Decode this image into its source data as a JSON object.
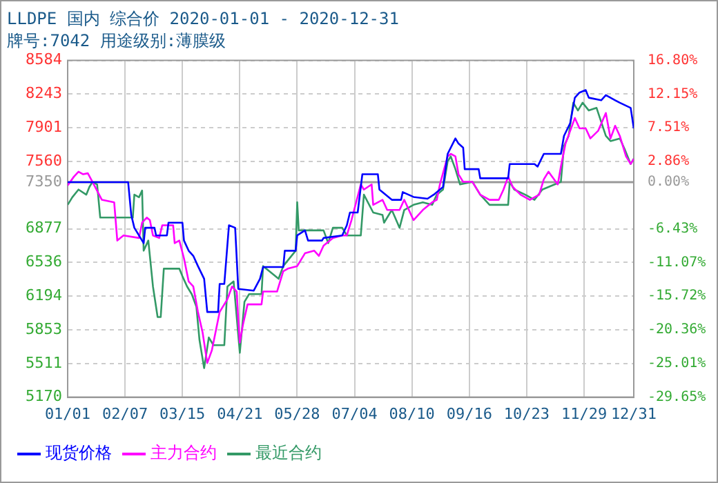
{
  "chart_data": {
    "type": "line",
    "title": "LLDPE 国内 综合价 2020-01-01 - 2020-12-31",
    "subtitle": "牌号:7042 用途级别:薄膜级",
    "xlim": [
      "2020-01-01",
      "2020-12-31"
    ],
    "xticks": [
      {
        "value": "2020-01-01",
        "label": "01/01"
      },
      {
        "value": "2020-02-07",
        "label": "02/07"
      },
      {
        "value": "2020-03-15",
        "label": "03/15"
      },
      {
        "value": "2020-04-21",
        "label": "04/21"
      },
      {
        "value": "2020-05-28",
        "label": "05/28"
      },
      {
        "value": "2020-07-04",
        "label": "07/04"
      },
      {
        "value": "2020-08-10",
        "label": "08/10"
      },
      {
        "value": "2020-09-16",
        "label": "09/16"
      },
      {
        "value": "2020-10-23",
        "label": "10/23"
      },
      {
        "value": "2020-11-29",
        "label": "11/29"
      },
      {
        "value": "2020-12-31",
        "label": "12/31"
      }
    ],
    "ylim": [
      5170,
      8584
    ],
    "yticks": [
      8584,
      8243,
      7901,
      7560,
      7350,
      6877,
      6536,
      6194,
      5853,
      5511,
      5170
    ],
    "y2lim": [
      -29.65,
      16.8
    ],
    "y2ticks": [
      {
        "value": 16.8,
        "label": "16.80%"
      },
      {
        "value": 12.15,
        "label": "12.15%"
      },
      {
        "value": 7.51,
        "label": "7.51%"
      },
      {
        "value": 2.86,
        "label": "2.86%"
      },
      {
        "value": 0,
        "label": "0.00%"
      },
      {
        "value": -6.43,
        "label": "-6.43%"
      },
      {
        "value": -11.07,
        "label": "-11.07%"
      },
      {
        "value": -15.72,
        "label": "-15.72%"
      },
      {
        "value": -20.36,
        "label": "-20.36%"
      },
      {
        "value": -25.01,
        "label": "-25.01%"
      },
      {
        "value": -29.65,
        "label": "-29.65%"
      }
    ],
    "ref_lines": [
      {
        "axis": "y",
        "value": 7350,
        "color": "#999999"
      }
    ],
    "grid": true,
    "legend": "bottom",
    "marker": "none",
    "line_style": "solid",
    "series": [
      {
        "name": "现货价格",
        "color": "#0000ff",
        "x": [
          "2020-01-01",
          "2020-02-09",
          "2020-02-11",
          "2020-02-13",
          "2020-02-19",
          "2020-02-20",
          "2020-02-26",
          "2020-02-27",
          "2020-03-05",
          "2020-03-06",
          "2020-03-15",
          "2020-03-16",
          "2020-03-19",
          "2020-03-22",
          "2020-03-25",
          "2020-03-29",
          "2020-03-31",
          "2020-04-07",
          "2020-04-08",
          "2020-04-11",
          "2020-04-14",
          "2020-04-18",
          "2020-04-20",
          "2020-04-30",
          "2020-05-04",
          "2020-05-06",
          "2020-05-19",
          "2020-05-20",
          "2020-05-27",
          "2020-05-28",
          "2020-06-02",
          "2020-06-04",
          "2020-06-13",
          "2020-06-14",
          "2020-06-26",
          "2020-06-29",
          "2020-07-01",
          "2020-07-06",
          "2020-07-09",
          "2020-07-19",
          "2020-07-20",
          "2020-07-28",
          "2020-08-03",
          "2020-08-04",
          "2020-08-11",
          "2020-08-20",
          "2020-08-24",
          "2020-08-30",
          "2020-09-02",
          "2020-09-07",
          "2020-09-09",
          "2020-09-12",
          "2020-09-13",
          "2020-09-22",
          "2020-09-23",
          "2020-10-11",
          "2020-10-12",
          "2020-10-28",
          "2020-10-30",
          "2020-11-03",
          "2020-11-14",
          "2020-11-16",
          "2020-11-20",
          "2020-11-23",
          "2020-11-26",
          "2020-11-30",
          "2020-12-02",
          "2020-12-10",
          "2020-12-13",
          "2020-12-19",
          "2020-12-22",
          "2020-12-29",
          "2020-12-31"
        ],
        "values": [
          7350,
          7350,
          7017,
          6887,
          6732,
          6887,
          6887,
          6810,
          6810,
          6939,
          6939,
          6758,
          6655,
          6603,
          6499,
          6370,
          6034,
          6034,
          6318,
          6318,
          6913,
          6887,
          6267,
          6250,
          6370,
          6489,
          6489,
          6655,
          6655,
          6810,
          6861,
          6758,
          6758,
          6784,
          6810,
          6913,
          7042,
          7042,
          7430,
          7430,
          7275,
          7171,
          7171,
          7249,
          7200,
          7182,
          7223,
          7301,
          7637,
          7793,
          7741,
          7700,
          7482,
          7482,
          7389,
          7389,
          7534,
          7534,
          7508,
          7637,
          7637,
          7819,
          7948,
          8206,
          8258,
          8284,
          8206,
          8180,
          8232,
          8180,
          8155,
          8103,
          7896
        ]
      },
      {
        "name": "主力合约",
        "color": "#ff00ff",
        "x": [
          "2020-01-01",
          "2020-01-05",
          "2020-01-08",
          "2020-01-11",
          "2020-01-14",
          "2020-01-17",
          "2020-01-23",
          "2020-01-31",
          "2020-02-02",
          "2020-02-06",
          "2020-02-16",
          "2020-02-18",
          "2020-02-21",
          "2020-02-23",
          "2020-02-25",
          "2020-02-29",
          "2020-03-02",
          "2020-03-09",
          "2020-03-10",
          "2020-03-13",
          "2020-03-16",
          "2020-03-19",
          "2020-03-22",
          "2020-03-25",
          "2020-03-28",
          "2020-03-31",
          "2020-04-03",
          "2020-04-06",
          "2020-04-08",
          "2020-04-13",
          "2020-04-16",
          "2020-04-19",
          "2020-04-20",
          "2020-04-21",
          "2020-04-23",
          "2020-04-26",
          "2020-05-05",
          "2020-05-06",
          "2020-05-15",
          "2020-05-19",
          "2020-05-22",
          "2020-05-28",
          "2020-06-02",
          "2020-06-08",
          "2020-06-11",
          "2020-06-14",
          "2020-06-20",
          "2020-06-26",
          "2020-06-29",
          "2020-07-02",
          "2020-07-08",
          "2020-07-10",
          "2020-07-15",
          "2020-07-16",
          "2020-07-22",
          "2020-07-25",
          "2020-08-02",
          "2020-08-05",
          "2020-08-11",
          "2020-08-17",
          "2020-08-23",
          "2020-08-26",
          "2020-08-28",
          "2020-09-02",
          "2020-09-04",
          "2020-09-07",
          "2020-09-09",
          "2020-09-12",
          "2020-09-18",
          "2020-09-23",
          "2020-09-29",
          "2020-10-05",
          "2020-10-08",
          "2020-10-11",
          "2020-10-14",
          "2020-10-19",
          "2020-10-25",
          "2020-10-31",
          "2020-11-03",
          "2020-11-06",
          "2020-11-12",
          "2020-11-14",
          "2020-11-17",
          "2020-11-20",
          "2020-11-23",
          "2020-11-26",
          "2020-11-30",
          "2020-12-03",
          "2020-12-08",
          "2020-12-13",
          "2020-12-16",
          "2020-12-19",
          "2020-12-22",
          "2020-12-26",
          "2020-12-29",
          "2020-12-31"
        ],
        "values": [
          7317,
          7405,
          7456,
          7430,
          7440,
          7353,
          7172,
          7146,
          6758,
          6810,
          6784,
          6939,
          6991,
          6965,
          6810,
          6784,
          6913,
          6913,
          6732,
          6758,
          6577,
          6344,
          6292,
          6034,
          5827,
          5516,
          5646,
          5879,
          6034,
          6163,
          6292,
          6241,
          5956,
          5723,
          5904,
          6111,
          6111,
          6241,
          6241,
          6447,
          6473,
          6499,
          6629,
          6655,
          6603,
          6706,
          6784,
          6810,
          6810,
          6965,
          7327,
          7275,
          7327,
          7120,
          7171,
          7068,
          7068,
          7171,
          6965,
          7068,
          7146,
          7171,
          7327,
          7611,
          7637,
          7611,
          7430,
          7353,
          7353,
          7223,
          7171,
          7171,
          7275,
          7405,
          7301,
          7223,
          7171,
          7223,
          7379,
          7456,
          7327,
          7508,
          7741,
          7870,
          8000,
          7896,
          7896,
          7793,
          7870,
          8051,
          7793,
          7922,
          7819,
          7611,
          7534,
          7586
        ]
      },
      {
        "name": "最近合约",
        "color": "#339966",
        "x": [
          "2020-01-01",
          "2020-01-04",
          "2020-01-08",
          "2020-01-13",
          "2020-01-15",
          "2020-01-17",
          "2020-01-20",
          "2020-01-22",
          "2020-02-12",
          "2020-02-13",
          "2020-02-16",
          "2020-02-18",
          "2020-02-19",
          "2020-02-22",
          "2020-02-25",
          "2020-02-28",
          "2020-03-01",
          "2020-03-03",
          "2020-03-13",
          "2020-03-15",
          "2020-03-18",
          "2020-03-21",
          "2020-03-24",
          "2020-03-26",
          "2020-03-29",
          "2020-04-01",
          "2020-04-04",
          "2020-04-11",
          "2020-04-13",
          "2020-04-17",
          "2020-04-21",
          "2020-04-24",
          "2020-04-27",
          "2020-05-05",
          "2020-05-06",
          "2020-05-10",
          "2020-05-16",
          "2020-05-19",
          "2020-05-27",
          "2020-05-28",
          "2020-05-29",
          "2020-06-14",
          "2020-06-17",
          "2020-06-20",
          "2020-06-26",
          "2020-06-29",
          "2020-07-08",
          "2020-07-10",
          "2020-07-16",
          "2020-07-22",
          "2020-07-23",
          "2020-07-28",
          "2020-08-02",
          "2020-08-05",
          "2020-08-11",
          "2020-08-17",
          "2020-08-23",
          "2020-08-26",
          "2020-08-30",
          "2020-09-02",
          "2020-09-04",
          "2020-09-07",
          "2020-09-10",
          "2020-09-18",
          "2020-09-23",
          "2020-09-29",
          "2020-10-11",
          "2020-10-12",
          "2020-10-15",
          "2020-10-22",
          "2020-10-28",
          "2020-11-02",
          "2020-11-14",
          "2020-11-16",
          "2020-11-19",
          "2020-11-22",
          "2020-11-25",
          "2020-11-28",
          "2020-12-02",
          "2020-12-07",
          "2020-12-13",
          "2020-12-16",
          "2020-12-22",
          "2020-12-25",
          "2020-12-29",
          "2020-12-31"
        ],
        "values": [
          7120,
          7197,
          7275,
          7223,
          7301,
          7353,
          7327,
          6991,
          6991,
          7223,
          7197,
          7265,
          6655,
          6758,
          6292,
          5982,
          5982,
          6473,
          6473,
          6396,
          6292,
          6215,
          6086,
          5749,
          5465,
          5775,
          5697,
          5697,
          6292,
          6344,
          5620,
          6137,
          6215,
          6215,
          6499,
          6447,
          6370,
          6499,
          6655,
          7146,
          6861,
          6861,
          6732,
          6887,
          6887,
          6810,
          6810,
          7223,
          7042,
          7017,
          6939,
          7068,
          6887,
          7068,
          7120,
          7146,
          7120,
          7223,
          7275,
          7560,
          7611,
          7482,
          7327,
          7353,
          7223,
          7120,
          7120,
          7353,
          7275,
          7223,
          7171,
          7275,
          7353,
          7715,
          7819,
          8155,
          8077,
          8155,
          8077,
          8103,
          7819,
          7767,
          7793,
          7689,
          7534,
          7586
        ]
      }
    ]
  }
}
